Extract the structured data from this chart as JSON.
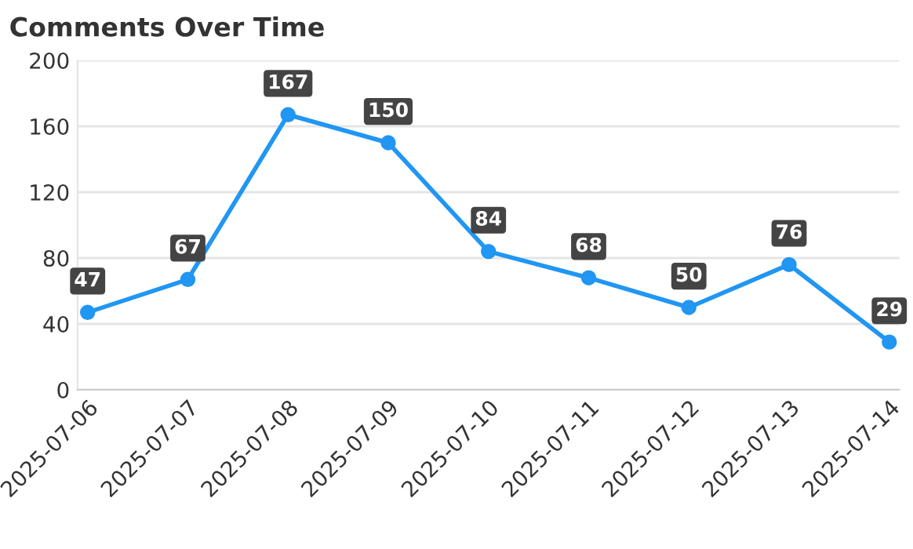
{
  "chart_data": {
    "type": "line",
    "title": "Comments Over Time",
    "categories": [
      "2025-07-06",
      "2025-07-07",
      "2025-07-08",
      "2025-07-09",
      "2025-07-10",
      "2025-07-11",
      "2025-07-12",
      "2025-07-13",
      "2025-07-14"
    ],
    "series": [
      {
        "color": "#2196f3",
        "values": [
          47,
          67,
          167,
          150,
          84,
          68,
          50,
          76,
          29
        ]
      }
    ],
    "ylim": [
      0,
      200
    ],
    "yticks": [
      0,
      40,
      80,
      120,
      160,
      200
    ],
    "grid": "y",
    "marker": "circle",
    "line_style": "solid",
    "data_labels": true
  }
}
